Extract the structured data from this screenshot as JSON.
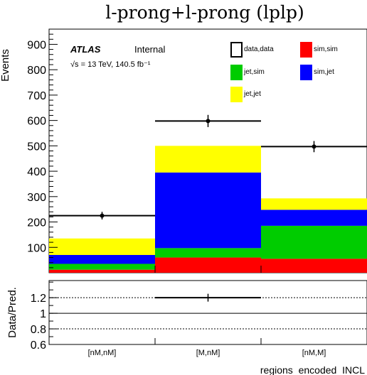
{
  "chart_data": [
    {
      "type": "bar",
      "stacked": true,
      "title": "l-prong+l-prong (lplp)",
      "ylabel": "Events",
      "xlabel": "regions_encoded_INCL",
      "categories": [
        "[nM,nM]",
        "[M,nM]",
        "[nM,M]"
      ],
      "ylim": [
        0,
        960
      ],
      "yticks": [
        100,
        200,
        300,
        400,
        500,
        600,
        700,
        800,
        900
      ],
      "series": [
        {
          "name": "sim,sim",
          "color": "#ff0000",
          "values": [
            12,
            60,
            55
          ]
        },
        {
          "name": "jet,sim",
          "color": "#00cc00",
          "values": [
            23,
            37,
            130
          ]
        },
        {
          "name": "sim,jet",
          "color": "#0000ff",
          "values": [
            35,
            298,
            63
          ]
        },
        {
          "name": "jet,jet",
          "color": "#ffff00",
          "values": [
            65,
            105,
            45
          ]
        }
      ],
      "data_series": {
        "name": "data,data",
        "values": [
          225,
          598,
          497
        ],
        "errors": [
          15,
          24,
          22
        ]
      },
      "legend": [
        {
          "label": "data,data",
          "style": "box"
        },
        {
          "label": "sim,sim",
          "color": "#ff0000"
        },
        {
          "label": "jet,sim",
          "color": "#00cc00"
        },
        {
          "label": "sim,jet",
          "color": "#0000ff"
        },
        {
          "label": "jet,jet",
          "color": "#ffff00"
        }
      ],
      "legend_position": "top-right",
      "annotations": {
        "experiment": "ATLAS",
        "status": "Internal",
        "energy_lumi": "√s = 13 TeV, 140.5 fb⁻¹"
      }
    },
    {
      "type": "scatter",
      "ylabel": "Data/Pred.",
      "categories": [
        "[nM,nM]",
        "[M,nM]",
        "[nM,M]"
      ],
      "ylim": [
        0.6,
        1.42
      ],
      "yticks": [
        0.6,
        0.8,
        1,
        1.2
      ],
      "ytick_labels": [
        "0.6",
        "0.8",
        "1",
        "1.2"
      ],
      "reference_lines": [
        0.8,
        1,
        1.2
      ],
      "ratio_points": [
        {
          "category": "[M,nM]",
          "value": 1.2,
          "error": 0.05
        }
      ]
    }
  ]
}
